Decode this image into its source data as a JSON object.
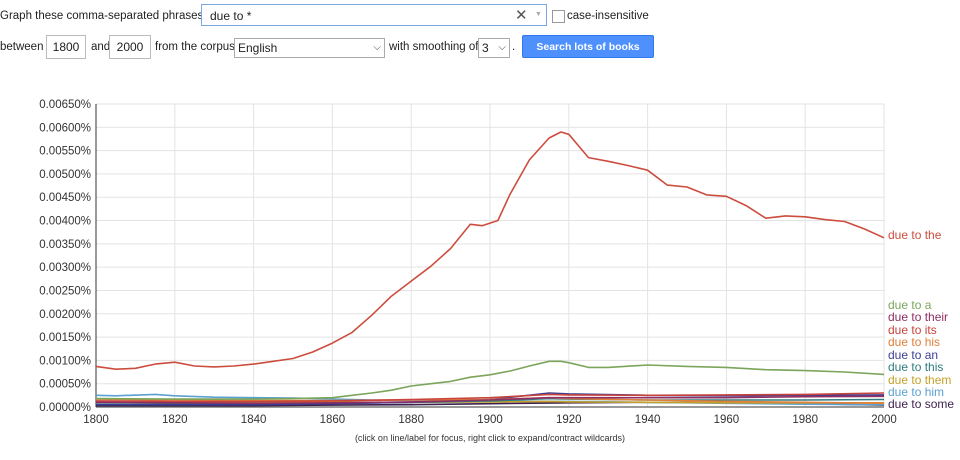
{
  "controls": {
    "phrases_label": "Graph these comma-separated phrases:",
    "query_value": "due to *",
    "case_label": "case-insensitive",
    "between_label": "between",
    "start_year": "1800",
    "and_label": "and",
    "end_year": "2000",
    "corpus_label": "from the corpus",
    "corpus_value": "English",
    "smoothing_label": "with smoothing of",
    "smoothing_value": "3",
    "smoothing_suffix": ".",
    "search_button": "Search lots of books"
  },
  "footer_note": "(click on line/label for focus, right click to expand/contract wildcards)",
  "colors": {
    "accent": "#4d90fe",
    "grid": "#e3e3e3"
  },
  "chart_data": {
    "type": "line",
    "xlim": [
      1800,
      2000
    ],
    "ylim": [
      0,
      0.0065
    ],
    "x_ticks": [
      "1800",
      "1820",
      "1840",
      "1860",
      "1880",
      "1900",
      "1920",
      "1940",
      "1960",
      "1980",
      "2000"
    ],
    "y_ticks": [
      "0.00000%",
      "0.00050%",
      "0.00100%",
      "0.00150%",
      "0.00200%",
      "0.00250%",
      "0.00300%",
      "0.00350%",
      "0.00400%",
      "0.00450%",
      "0.00500%",
      "0.00550%",
      "0.00600%",
      "0.00650%"
    ],
    "grid": true,
    "legend": "right, at line ends",
    "series": [
      {
        "name": "due to the",
        "color": "#cc4d3e",
        "x": [
          1800,
          1805,
          1810,
          1815,
          1820,
          1825,
          1830,
          1835,
          1840,
          1845,
          1850,
          1855,
          1860,
          1865,
          1870,
          1875,
          1880,
          1885,
          1890,
          1895,
          1898,
          1902,
          1905,
          1910,
          1915,
          1918,
          1920,
          1922,
          1925,
          1930,
          1935,
          1940,
          1945,
          1950,
          1955,
          1960,
          1965,
          1970,
          1975,
          1980,
          1985,
          1990,
          1995,
          2000
        ],
        "y": [
          0.00087,
          0.00081,
          0.00083,
          0.00092,
          0.00096,
          0.00088,
          0.00086,
          0.00088,
          0.00092,
          0.00098,
          0.00104,
          0.00118,
          0.00137,
          0.0016,
          0.00197,
          0.00238,
          0.0027,
          0.00302,
          0.0034,
          0.00392,
          0.00389,
          0.004,
          0.00455,
          0.0053,
          0.00577,
          0.0059,
          0.00585,
          0.00565,
          0.00535,
          0.00527,
          0.00518,
          0.00508,
          0.00476,
          0.00472,
          0.00455,
          0.00452,
          0.00432,
          0.00405,
          0.0041,
          0.00408,
          0.00402,
          0.00398,
          0.00382,
          0.00363
        ]
      },
      {
        "name": "due to a",
        "color": "#7ba55a",
        "x": [
          1800,
          1820,
          1840,
          1850,
          1860,
          1865,
          1870,
          1875,
          1880,
          1885,
          1890,
          1895,
          1900,
          1905,
          1910,
          1915,
          1918,
          1920,
          1925,
          1930,
          1940,
          1950,
          1960,
          1970,
          1980,
          1990,
          2000
        ],
        "y": [
          0.00018,
          0.00017,
          0.00017,
          0.00018,
          0.0002,
          0.00025,
          0.0003,
          0.00036,
          0.00045,
          0.0005,
          0.00055,
          0.00064,
          0.00069,
          0.00077,
          0.00088,
          0.00098,
          0.00098,
          0.00095,
          0.00085,
          0.00085,
          0.0009,
          0.00087,
          0.00085,
          0.0008,
          0.00078,
          0.00075,
          0.0007
        ]
      },
      {
        "name": "due to their",
        "color": "#8e2e63",
        "x": [
          1800,
          1820,
          1840,
          1860,
          1880,
          1900,
          1915,
          1920,
          1940,
          1960,
          1980,
          2000
        ],
        "y": [
          0.0001,
          9e-05,
          8e-05,
          9e-05,
          0.00011,
          0.00015,
          0.0002,
          0.0002,
          0.0002,
          0.0002,
          0.00022,
          0.00023
        ]
      },
      {
        "name": "due to its",
        "color": "#c8433b",
        "x": [
          1800,
          1820,
          1840,
          1860,
          1880,
          1900,
          1915,
          1920,
          1940,
          1960,
          1980,
          2000
        ],
        "y": [
          0.00013,
          0.00012,
          0.00012,
          0.00013,
          0.00016,
          0.0002,
          0.00027,
          0.00026,
          0.00025,
          0.00026,
          0.00027,
          0.0003
        ]
      },
      {
        "name": "due to his",
        "color": "#e1803a",
        "x": [
          1800,
          1820,
          1840,
          1860,
          1880,
          1900,
          1915,
          1920,
          1940,
          1960,
          1980,
          2000
        ],
        "y": [
          0.00017,
          0.00015,
          0.00014,
          0.00014,
          0.00015,
          0.00016,
          0.0002,
          0.00018,
          0.00015,
          0.00012,
          0.0001,
          8e-05
        ]
      },
      {
        "name": "due to an",
        "color": "#3b3f93",
        "x": [
          1800,
          1820,
          1840,
          1860,
          1880,
          1900,
          1915,
          1920,
          1940,
          1960,
          1980,
          2000
        ],
        "y": [
          5e-05,
          5e-05,
          5e-05,
          7e-05,
          0.0001,
          0.00016,
          0.0003,
          0.00028,
          0.00025,
          0.00024,
          0.00025,
          0.00026
        ]
      },
      {
        "name": "due to this",
        "color": "#2f7c80",
        "x": [
          1800,
          1820,
          1840,
          1860,
          1880,
          1900,
          1915,
          1920,
          1940,
          1960,
          1980,
          2000
        ],
        "y": [
          6e-05,
          6e-05,
          7e-05,
          8e-05,
          0.0001,
          0.00013,
          0.00018,
          0.00017,
          0.00015,
          0.00015,
          0.00015,
          0.00016
        ]
      },
      {
        "name": "due to them",
        "color": "#c4a02a",
        "x": [
          1800,
          1820,
          1840,
          1860,
          1880,
          1900,
          1915,
          1920,
          1940,
          1960,
          1980,
          2000
        ],
        "y": [
          0.00012,
          0.00011,
          0.0001,
          0.0001,
          0.0001,
          0.00011,
          0.00012,
          0.00011,
          0.0001,
          9e-05,
          9e-05,
          9e-05
        ]
      },
      {
        "name": "due to him",
        "color": "#5aa0d0",
        "x": [
          1800,
          1805,
          1815,
          1820,
          1830,
          1840,
          1850,
          1860,
          1870,
          1880,
          1900,
          1920,
          1940,
          1960,
          1980,
          2000
        ],
        "y": [
          0.00025,
          0.00024,
          0.00027,
          0.00024,
          0.00021,
          0.0002,
          0.00019,
          0.00017,
          0.00015,
          0.00014,
          0.00013,
          0.00012,
          0.0001,
          8e-05,
          6e-05,
          5e-05
        ]
      },
      {
        "name": "due to some",
        "color": "#3d1f4d",
        "x": [
          1800,
          1820,
          1840,
          1860,
          1880,
          1900,
          1920,
          1940,
          1960,
          1980,
          2000
        ],
        "y": [
          3e-05,
          3e-05,
          3e-05,
          4e-05,
          5e-05,
          7e-05,
          9e-05,
          0.0001,
          9e-05,
          7e-05,
          4e-05
        ]
      }
    ]
  }
}
